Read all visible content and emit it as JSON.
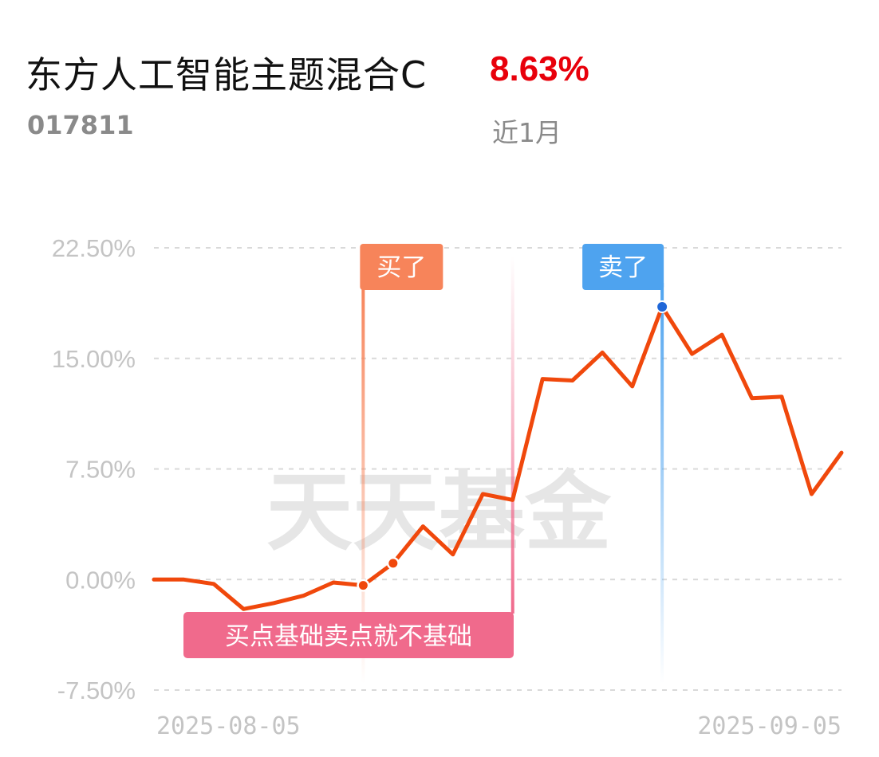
{
  "header": {
    "fund_name": "东方人工智能主题混合C",
    "fund_code": "017811",
    "return_value": "8.63%",
    "return_period": "近1月"
  },
  "watermark": "天天基金",
  "colors": {
    "line": "#f0480c",
    "buy": "#f7845a",
    "sell": "#4ea3ef",
    "note": "#f06a8c",
    "grid": "#d9d9d9",
    "tick": "#c4c4c4"
  },
  "chart_data": {
    "type": "line",
    "x_tick_labels": [
      "2025-08-05",
      "2025-09-05"
    ],
    "y_tick_labels": [
      "22.50%",
      "15.00%",
      "7.50%",
      "0.00%",
      "-7.50%"
    ],
    "ylim": [
      -7.5,
      22.5
    ],
    "ygrid": [
      22.5,
      15.0,
      7.5,
      0.0,
      -7.5
    ],
    "grid": true,
    "series": [
      {
        "values": [
          0.0,
          0.0,
          -0.3,
          -2.0,
          -1.6,
          -1.1,
          -0.2,
          -0.4,
          1.1,
          3.6,
          1.7,
          5.8,
          5.4,
          13.6,
          13.5,
          15.4,
          13.1,
          18.5,
          15.3,
          16.6,
          12.3,
          12.4,
          5.8,
          8.6
        ]
      }
    ],
    "markers": [
      {
        "label": "买了",
        "kind": "buy",
        "index": 7
      },
      {
        "label": "卖了",
        "kind": "sell",
        "index": 17
      }
    ],
    "extra_dot_index": 8,
    "annotation": {
      "label": "买点基础卖点就不基础",
      "index": 12
    }
  }
}
